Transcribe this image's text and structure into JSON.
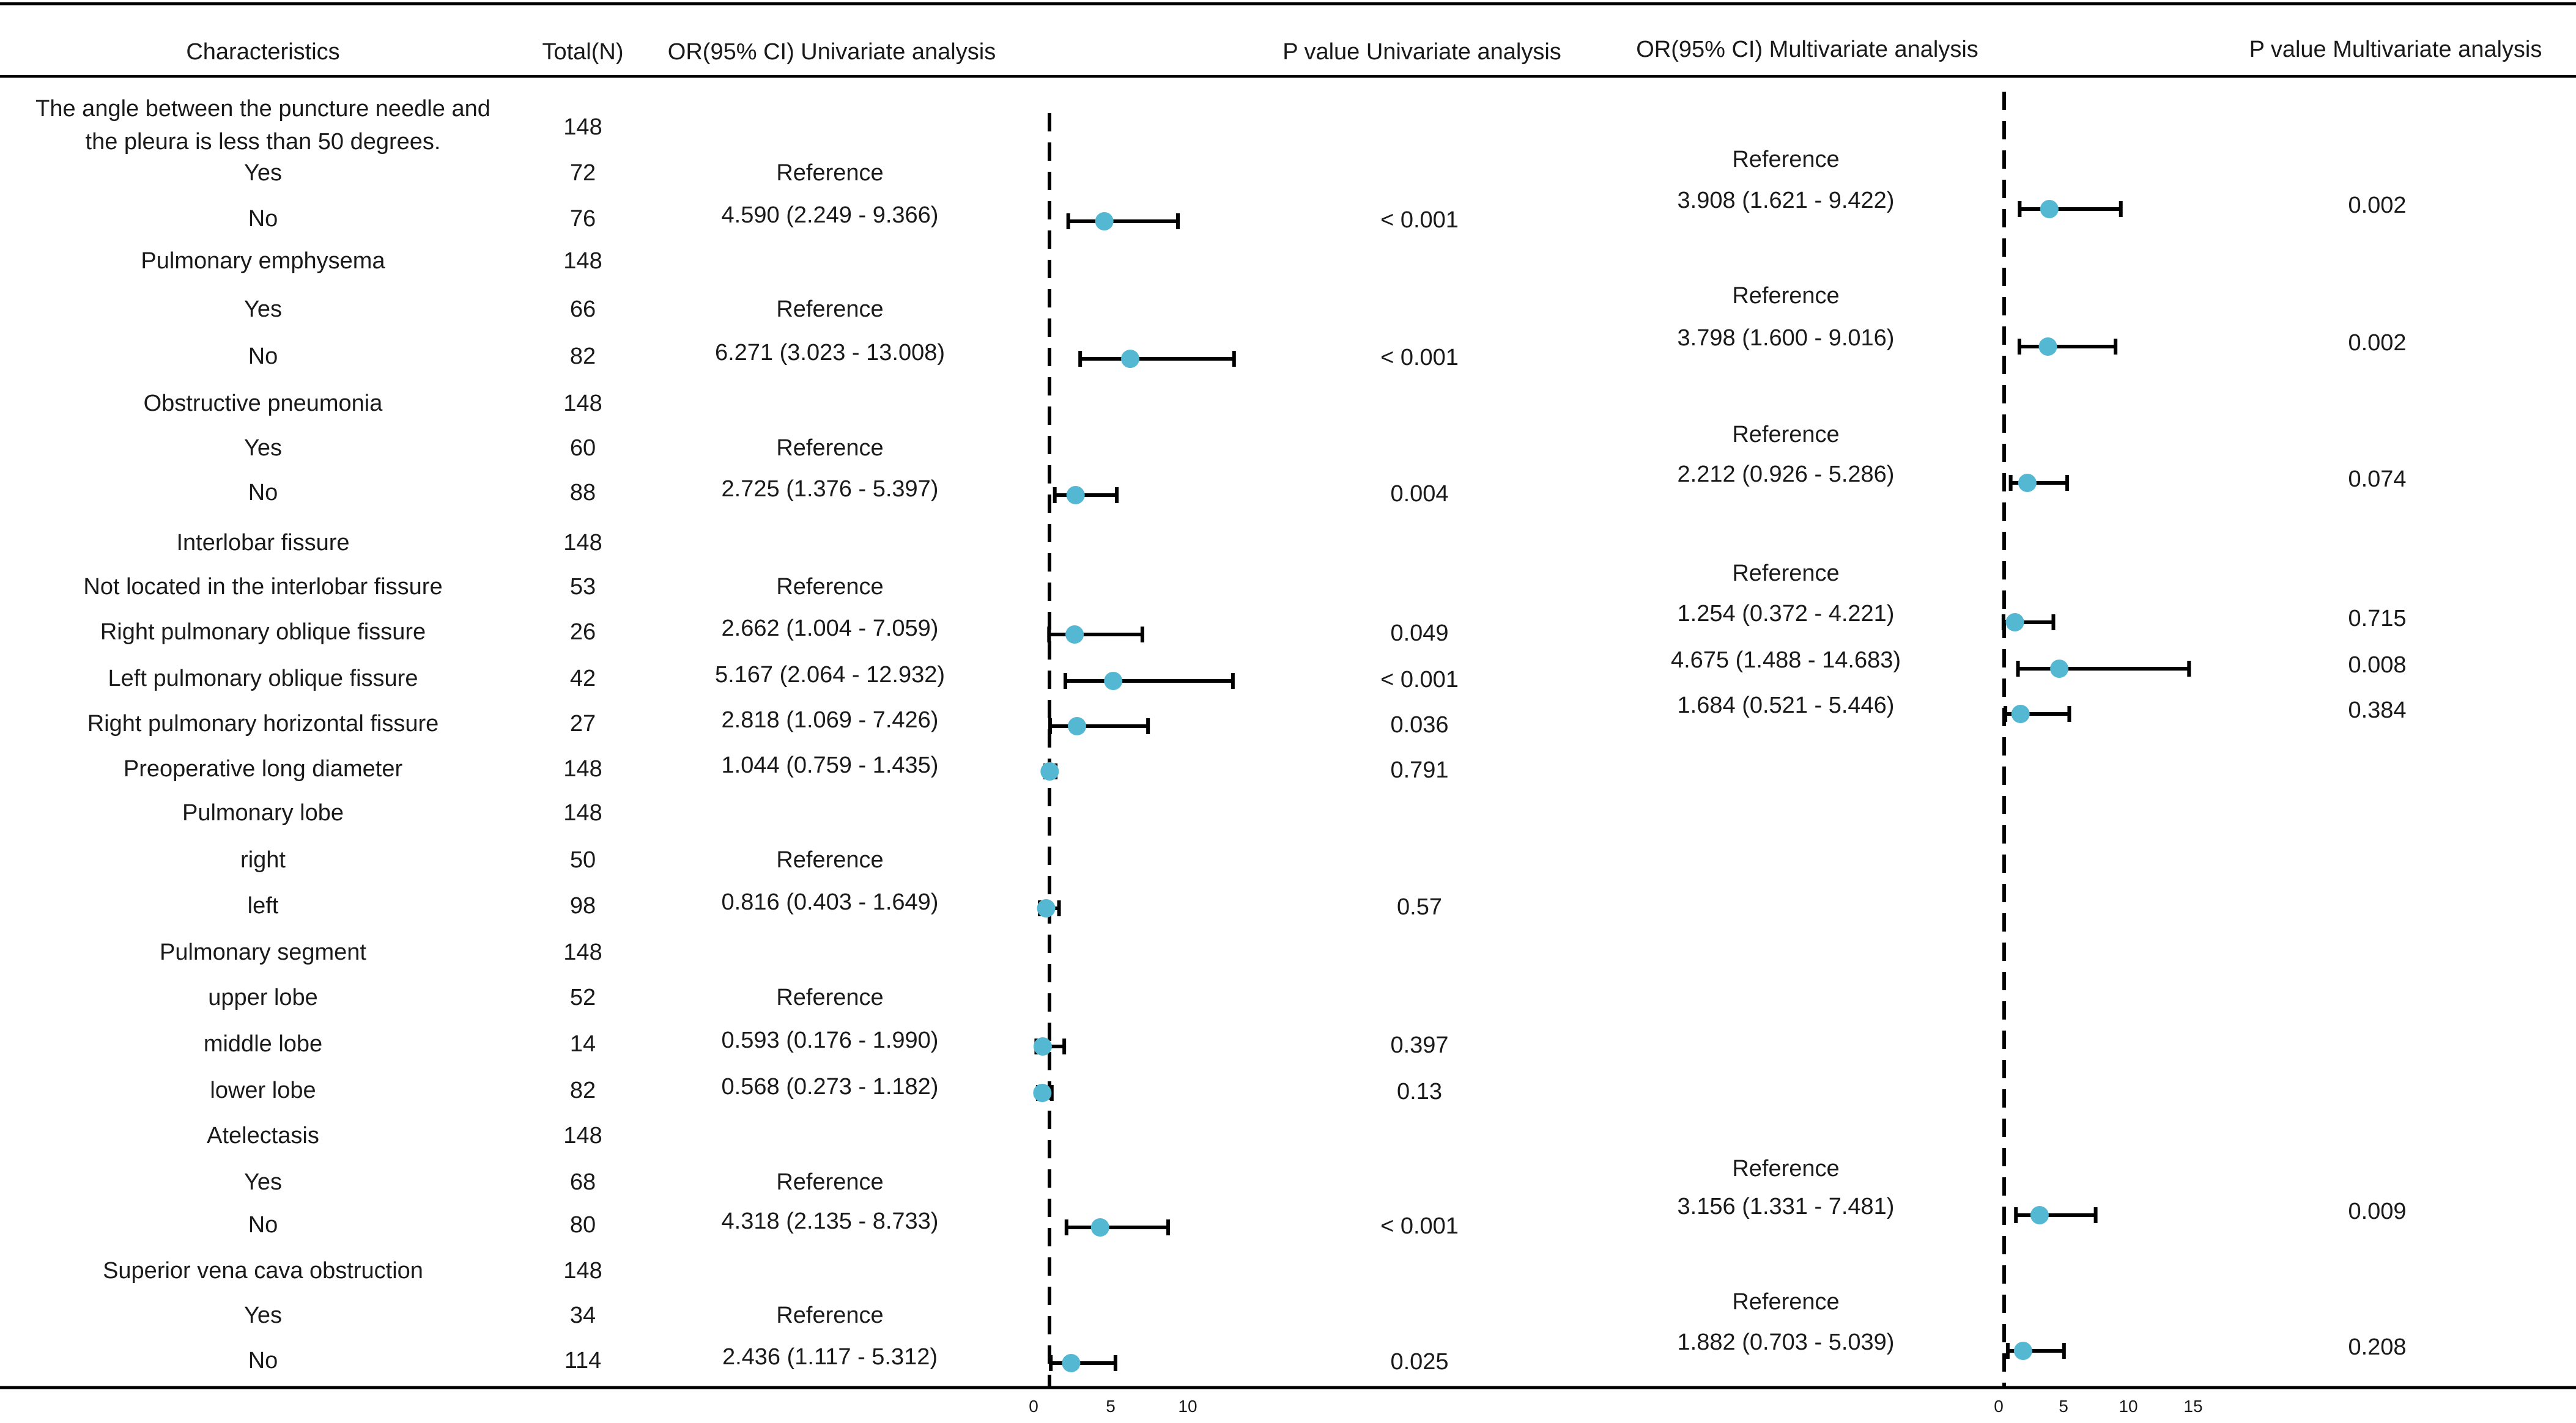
{
  "chart_data": {
    "type": "forest",
    "title": "",
    "columns": {
      "characteristics": "Characteristics",
      "total": "Total(N)",
      "or_uni": "OR(95% CI) Univariate analysis",
      "p_uni": "P value Univariate analysis",
      "or_multi": "OR(95% CI) Multivariate analysis",
      "p_multi": "P value Multivariate analysis"
    },
    "reference_value": 1,
    "univariate_axis": {
      "xlim": [
        0,
        12
      ],
      "ticks": [
        0,
        5,
        10
      ]
    },
    "multivariate_axis": {
      "xlim": [
        0,
        15.5
      ],
      "ticks": [
        0,
        5,
        10,
        15
      ]
    },
    "colors": {
      "point": "#55b8d3",
      "line": "#000000"
    },
    "rows": [
      {
        "label": "The angle between the puncture needle and",
        "label2": "the pleura is less than 50 degrees.",
        "total": "148"
      },
      {
        "label": "Yes",
        "total": "72",
        "uni": {
          "text": "Reference"
        },
        "multi": {
          "text": "Reference"
        }
      },
      {
        "label": "No",
        "total": "76",
        "uni": {
          "text": "4.590 (2.249 - 9.366)",
          "or": 4.59,
          "lo": 2.249,
          "hi": 9.366,
          "p": "< 0.001"
        },
        "multi": {
          "text": "3.908 (1.621 - 9.422)",
          "or": 3.908,
          "lo": 1.621,
          "hi": 9.422,
          "p": "0.002"
        }
      },
      {
        "label": "Pulmonary emphysema",
        "total": "148"
      },
      {
        "label": "Yes",
        "total": "66",
        "uni": {
          "text": "Reference"
        },
        "multi": {
          "text": "Reference"
        }
      },
      {
        "label": "No",
        "total": "82",
        "uni": {
          "text": "6.271 (3.023 - 13.008)",
          "or": 6.271,
          "lo": 3.023,
          "hi": 13.008,
          "p": "< 0.001"
        },
        "multi": {
          "text": "3.798 (1.600 - 9.016)",
          "or": 3.798,
          "lo": 1.6,
          "hi": 9.016,
          "p": "0.002"
        }
      },
      {
        "label": "Obstructive pneumonia",
        "total": "148"
      },
      {
        "label": "Yes",
        "total": "60",
        "uni": {
          "text": "Reference"
        },
        "multi": {
          "text": "Reference"
        }
      },
      {
        "label": "No",
        "total": "88",
        "uni": {
          "text": "2.725 (1.376 - 5.397)",
          "or": 2.725,
          "lo": 1.376,
          "hi": 5.397,
          "p": "0.004"
        },
        "multi": {
          "text": "2.212 (0.926 - 5.286)",
          "or": 2.212,
          "lo": 0.926,
          "hi": 5.286,
          "p": "0.074"
        }
      },
      {
        "label": "Interlobar fissure",
        "total": "148"
      },
      {
        "label": "Not located in the interlobar fissure",
        "total": "53",
        "uni": {
          "text": "Reference"
        },
        "multi": {
          "text": "Reference"
        }
      },
      {
        "label": "Right pulmonary oblique fissure",
        "total": "26",
        "uni": {
          "text": "2.662 (1.004 - 7.059)",
          "or": 2.662,
          "lo": 1.004,
          "hi": 7.059,
          "p": "0.049"
        },
        "multi": {
          "text": "1.254 (0.372 - 4.221)",
          "or": 1.254,
          "lo": 0.372,
          "hi": 4.221,
          "p": "0.715"
        }
      },
      {
        "label": "Left pulmonary oblique fissure",
        "total": "42",
        "uni": {
          "text": "5.167 (2.064 - 12.932)",
          "or": 5.167,
          "lo": 2.064,
          "hi": 12.932,
          "p": "< 0.001"
        },
        "multi": {
          "text": "4.675 (1.488 - 14.683)",
          "or": 4.675,
          "lo": 1.488,
          "hi": 14.683,
          "p": "0.008"
        }
      },
      {
        "label": "Right pulmonary horizontal fissure",
        "total": "27",
        "uni": {
          "text": "2.818 (1.069 - 7.426)",
          "or": 2.818,
          "lo": 1.069,
          "hi": 7.426,
          "p": "0.036"
        },
        "multi": {
          "text": "1.684 (0.521 - 5.446)",
          "or": 1.684,
          "lo": 0.521,
          "hi": 5.446,
          "p": "0.384"
        }
      },
      {
        "label": "Preoperative long diameter",
        "total": "148",
        "uni": {
          "text": "1.044 (0.759 - 1.435)",
          "or": 1.044,
          "lo": 0.759,
          "hi": 1.435,
          "p": "0.791"
        }
      },
      {
        "label": "Pulmonary lobe",
        "total": "148"
      },
      {
        "label": "right",
        "total": "50",
        "uni": {
          "text": "Reference"
        }
      },
      {
        "label": "left",
        "total": "98",
        "uni": {
          "text": "0.816 (0.403 - 1.649)",
          "or": 0.816,
          "lo": 0.403,
          "hi": 1.649,
          "p": "0.57"
        }
      },
      {
        "label": "Pulmonary segment",
        "total": "148"
      },
      {
        "label": "upper lobe",
        "total": "52",
        "uni": {
          "text": "Reference"
        }
      },
      {
        "label": "middle lobe",
        "total": "14",
        "uni": {
          "text": "0.593 (0.176 - 1.990)",
          "or": 0.593,
          "lo": 0.176,
          "hi": 1.99,
          "p": "0.397"
        }
      },
      {
        "label": "lower lobe",
        "total": "82",
        "uni": {
          "text": "0.568 (0.273 - 1.182)",
          "or": 0.568,
          "lo": 0.273,
          "hi": 1.182,
          "p": "0.13"
        }
      },
      {
        "label": "Atelectasis",
        "total": "148"
      },
      {
        "label": "Yes",
        "total": "68",
        "uni": {
          "text": "Reference"
        },
        "multi": {
          "text": "Reference"
        }
      },
      {
        "label": "No",
        "total": "80",
        "uni": {
          "text": "4.318 (2.135 - 8.733)",
          "or": 4.318,
          "lo": 2.135,
          "hi": 8.733,
          "p": "< 0.001"
        },
        "multi": {
          "text": "3.156 (1.331 - 7.481)",
          "or": 3.156,
          "lo": 1.331,
          "hi": 7.481,
          "p": "0.009"
        }
      },
      {
        "label": "Superior vena cava obstruction",
        "total": "148"
      },
      {
        "label": "Yes",
        "total": "34",
        "uni": {
          "text": "Reference"
        },
        "multi": {
          "text": "Reference"
        }
      },
      {
        "label": "No",
        "total": "114",
        "uni": {
          "text": "2.436 (1.117 - 5.312)",
          "or": 2.436,
          "lo": 1.117,
          "hi": 5.312,
          "p": "0.025"
        },
        "multi": {
          "text": "1.882 (0.703 - 5.039)",
          "or": 1.882,
          "lo": 0.703,
          "hi": 5.039,
          "p": "0.208"
        }
      }
    ]
  }
}
